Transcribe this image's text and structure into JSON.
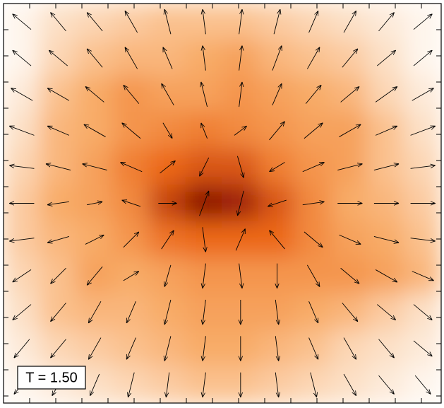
{
  "chart_data": {
    "type": "quiver",
    "annotation": "T = 1.50",
    "heatmap": [
      [
        0.05,
        0.15,
        0.2,
        0.25,
        0.3,
        0.3,
        0.3,
        0.25,
        0.2,
        0.15,
        0.1,
        0.05
      ],
      [
        0.05,
        0.2,
        0.3,
        0.35,
        0.35,
        0.4,
        0.45,
        0.35,
        0.3,
        0.25,
        0.15,
        0.05
      ],
      [
        0.1,
        0.3,
        0.4,
        0.5,
        0.45,
        0.45,
        0.5,
        0.45,
        0.4,
        0.35,
        0.2,
        0.1
      ],
      [
        0.15,
        0.35,
        0.4,
        0.5,
        0.55,
        0.6,
        0.55,
        0.5,
        0.45,
        0.45,
        0.3,
        0.15
      ],
      [
        0.2,
        0.35,
        0.45,
        0.6,
        0.7,
        0.75,
        0.75,
        0.6,
        0.5,
        0.45,
        0.3,
        0.2
      ],
      [
        0.25,
        0.4,
        0.45,
        0.55,
        0.8,
        0.95,
        0.9,
        0.75,
        0.55,
        0.4,
        0.35,
        0.25
      ],
      [
        0.25,
        0.35,
        0.4,
        0.5,
        0.65,
        0.7,
        0.7,
        0.7,
        0.55,
        0.45,
        0.4,
        0.3
      ],
      [
        0.2,
        0.3,
        0.45,
        0.4,
        0.45,
        0.5,
        0.5,
        0.5,
        0.5,
        0.5,
        0.45,
        0.35
      ],
      [
        0.15,
        0.3,
        0.35,
        0.35,
        0.4,
        0.45,
        0.45,
        0.45,
        0.4,
        0.35,
        0.25,
        0.15
      ],
      [
        0.1,
        0.2,
        0.25,
        0.3,
        0.35,
        0.4,
        0.4,
        0.35,
        0.3,
        0.2,
        0.15,
        0.1
      ],
      [
        0.05,
        0.1,
        0.15,
        0.2,
        0.25,
        0.3,
        0.3,
        0.25,
        0.2,
        0.15,
        0.1,
        0.05
      ]
    ],
    "u": [
      [
        -0.6,
        -0.5,
        -0.5,
        -0.4,
        -0.2,
        -0.1,
        0.1,
        0.2,
        0.3,
        0.4,
        0.5,
        0.6
      ],
      [
        -0.6,
        -0.6,
        -0.5,
        -0.4,
        -0.3,
        -0.1,
        0.1,
        0.3,
        0.4,
        0.5,
        0.6,
        0.6
      ],
      [
        -0.7,
        -0.7,
        -0.6,
        -0.5,
        -0.4,
        -0.2,
        0.1,
        0.3,
        0.5,
        0.6,
        0.7,
        0.7
      ],
      [
        -0.8,
        -0.7,
        -0.7,
        -0.6,
        0.3,
        -0.2,
        0.4,
        0.5,
        0.6,
        0.7,
        0.7,
        0.8
      ],
      [
        -0.8,
        -0.8,
        -0.8,
        -0.7,
        0.5,
        -0.3,
        0.2,
        -0.5,
        0.7,
        0.8,
        0.8,
        0.8
      ],
      [
        -0.8,
        -0.7,
        0.5,
        -0.6,
        0.6,
        0.3,
        -0.2,
        -0.6,
        0.7,
        0.8,
        0.8,
        0.8
      ],
      [
        -0.8,
        -0.7,
        0.6,
        0.5,
        0.4,
        0.1,
        0.3,
        -0.5,
        0.6,
        0.7,
        0.8,
        0.8
      ],
      [
        -0.6,
        -0.5,
        -0.5,
        0.5,
        -0.2,
        -0.1,
        0.1,
        0.0,
        0.4,
        0.6,
        0.7,
        0.7
      ],
      [
        -0.6,
        -0.5,
        -0.4,
        -0.3,
        -0.2,
        -0.1,
        0.0,
        0.1,
        0.3,
        0.5,
        0.6,
        0.6
      ],
      [
        -0.5,
        -0.5,
        -0.4,
        -0.3,
        -0.2,
        -0.1,
        0.0,
        0.1,
        0.3,
        0.4,
        0.5,
        0.6
      ],
      [
        -0.5,
        -0.4,
        -0.3,
        -0.2,
        -0.1,
        -0.1,
        0.0,
        0.1,
        0.2,
        0.4,
        0.5,
        0.5
      ]
    ],
    "v": [
      [
        0.5,
        0.6,
        0.6,
        0.7,
        0.8,
        0.8,
        0.8,
        0.8,
        0.7,
        0.7,
        0.6,
        0.5
      ],
      [
        0.5,
        0.5,
        0.6,
        0.7,
        0.7,
        0.8,
        0.8,
        0.8,
        0.7,
        0.6,
        0.5,
        0.5
      ],
      [
        0.4,
        0.4,
        0.5,
        0.6,
        0.7,
        0.8,
        0.8,
        0.7,
        0.6,
        0.5,
        0.5,
        0.4
      ],
      [
        0.3,
        0.3,
        0.4,
        0.5,
        -0.5,
        0.5,
        0.3,
        0.6,
        0.5,
        0.4,
        0.3,
        0.3
      ],
      [
        0.1,
        0.2,
        0.2,
        0.3,
        0.4,
        -0.6,
        -0.7,
        -0.3,
        0.3,
        0.2,
        0.2,
        0.1
      ],
      [
        0.0,
        -0.1,
        0.1,
        0.2,
        0.0,
        0.8,
        -0.8,
        -0.2,
        0.1,
        0.0,
        0.0,
        0.0
      ],
      [
        -0.1,
        -0.2,
        0.3,
        0.5,
        0.6,
        -0.8,
        0.7,
        0.6,
        -0.5,
        -0.3,
        -0.2,
        -0.1
      ],
      [
        -0.4,
        -0.5,
        -0.6,
        0.3,
        -0.7,
        -0.8,
        -0.8,
        -0.8,
        -0.7,
        -0.5,
        -0.4,
        -0.3
      ],
      [
        -0.5,
        -0.6,
        -0.7,
        -0.7,
        -0.8,
        -0.8,
        -0.8,
        -0.8,
        -0.7,
        -0.6,
        -0.5,
        -0.5
      ],
      [
        -0.6,
        -0.6,
        -0.7,
        -0.7,
        -0.8,
        -0.8,
        -0.8,
        -0.8,
        -0.7,
        -0.7,
        -0.6,
        -0.5
      ],
      [
        -0.6,
        -0.7,
        -0.7,
        -0.8,
        -0.8,
        -0.8,
        -0.8,
        -0.8,
        -0.8,
        -0.7,
        -0.6,
        -0.6
      ]
    ]
  }
}
